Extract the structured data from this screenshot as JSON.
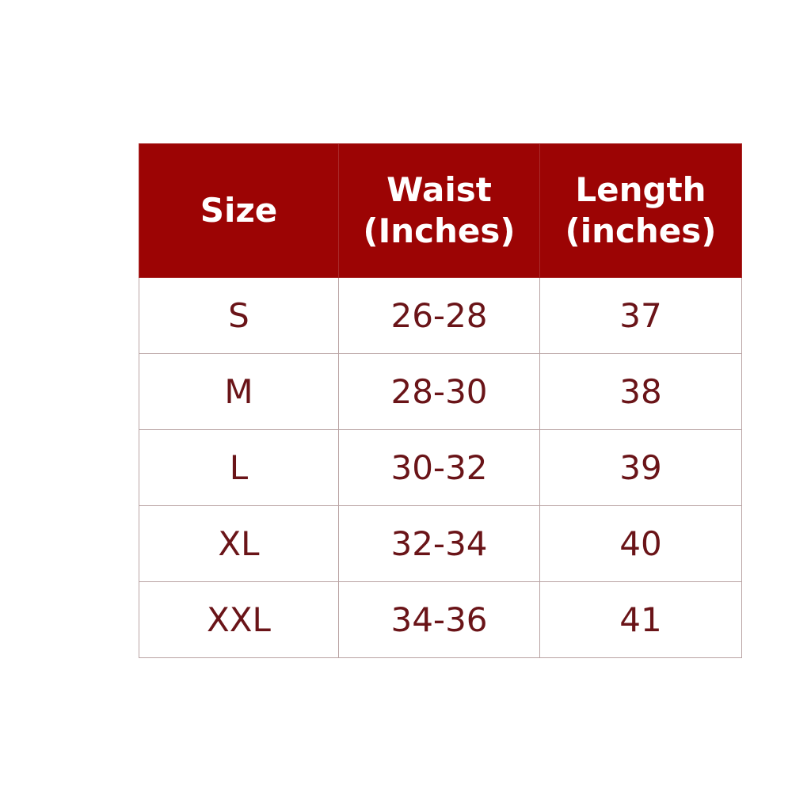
{
  "table": {
    "headers": [
      {
        "line1": "Size",
        "line2": ""
      },
      {
        "line1": "Waist",
        "line2": "(Inches)"
      },
      {
        "line1": "Length",
        "line2": "(inches)"
      }
    ],
    "rows": [
      [
        "S",
        "26-28",
        "37"
      ],
      [
        "M",
        "28-30",
        "38"
      ],
      [
        "L",
        "30-32",
        "39"
      ],
      [
        "XL",
        "32-34",
        "40"
      ],
      [
        "XXL",
        "34-36",
        "41"
      ]
    ],
    "colors": {
      "header_bg": "#9c0404",
      "header_text": "#ffffff",
      "body_text": "#6a1418"
    }
  }
}
